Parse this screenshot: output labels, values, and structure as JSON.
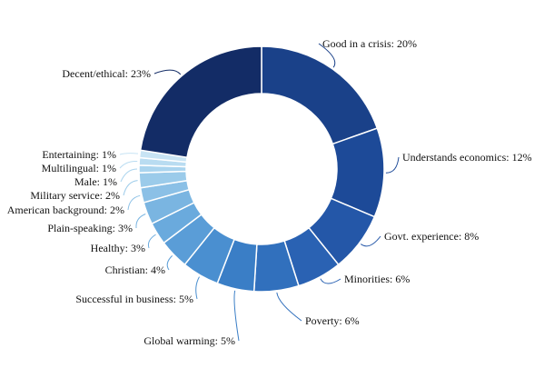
{
  "chart_data": {
    "type": "pie",
    "variant": "donut",
    "categories": [
      "Good in a crisis",
      "Understands economics",
      "Govt. experience",
      "Minorities",
      "Poverty",
      "Global warming",
      "Successful in business",
      "Christian",
      "Healthy",
      "Plain-speaking",
      "American background",
      "Military service",
      "Male",
      "Multilingual",
      "Entertaining",
      "Decent/ethical"
    ],
    "values": [
      20,
      12,
      8,
      6,
      6,
      5,
      5,
      4,
      3,
      3,
      2,
      2,
      1,
      1,
      1,
      23
    ],
    "labels": [
      "Good in a crisis: 20%",
      "Understands economics:  12%",
      "Govt. experience: 8%",
      "Minorities: 6%",
      "Poverty: 6%",
      "Global warming: 5%",
      "Successful in business: 5%",
      "Christian: 4%",
      "Healthy: 3%",
      "Plain-speaking: 3%",
      "American background: 2%",
      "Military service: 2%",
      "Male: 1%",
      "Multilingual: 1%",
      "Entertaining: 1%",
      "Decent/ethical: 23%"
    ],
    "colors": [
      "#1a4189",
      "#1d4a98",
      "#2457a8",
      "#2a62b3",
      "#3170bd",
      "#3a7ec6",
      "#4a8fd0",
      "#5a9dd7",
      "#6aaadd",
      "#7ab5e1",
      "#8bc0e6",
      "#9bcbea",
      "#aad4ee",
      "#b9dcf1",
      "#c8e4f4",
      "#132c66"
    ],
    "legend": "none",
    "units": "%"
  }
}
